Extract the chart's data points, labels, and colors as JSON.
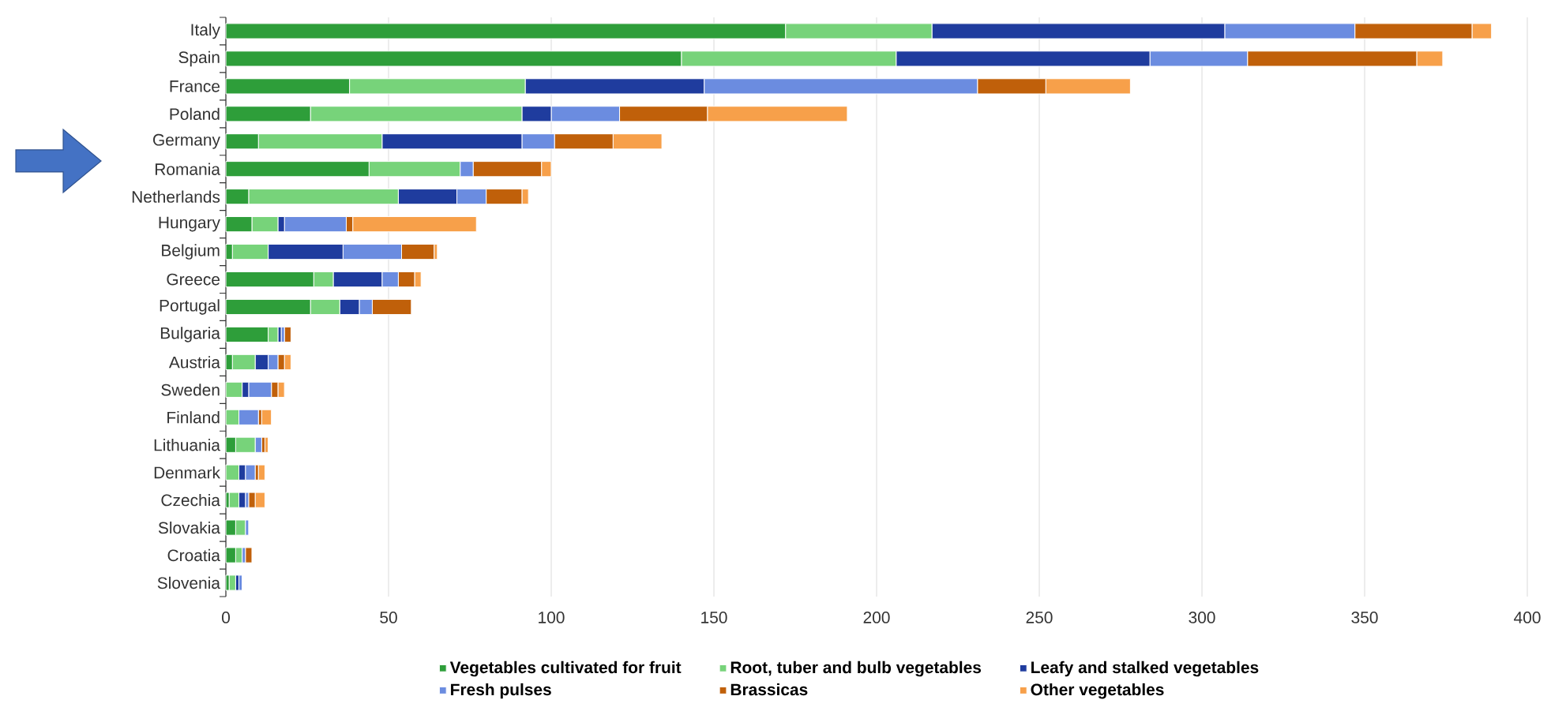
{
  "chart_data": {
    "type": "bar",
    "orientation": "horizontal",
    "stacked": true,
    "categories": [
      "Italy",
      "Spain",
      "France",
      "Poland",
      "Germany",
      "Romania",
      "Netherlands",
      "Hungary",
      "Belgium",
      "Greece",
      "Portugal",
      "Bulgaria",
      "Austria",
      "Sweden",
      "Finland",
      "Lithuania",
      "Denmark",
      "Czechia",
      "Slovakia",
      "Croatia",
      "Slovenia"
    ],
    "series": [
      {
        "name": "Vegetables cultivated for fruit",
        "color": "#2e9e3a",
        "values": [
          172,
          140,
          38,
          26,
          10,
          44,
          7,
          8,
          2,
          27,
          26,
          13,
          2,
          0,
          0,
          3,
          0,
          1,
          3,
          3,
          1
        ]
      },
      {
        "name": "Root, tuber and bulb vegetables",
        "color": "#77d37a",
        "values": [
          45,
          66,
          54,
          65,
          38,
          28,
          46,
          8,
          11,
          6,
          9,
          3,
          7,
          5,
          4,
          6,
          4,
          3,
          3,
          2,
          2
        ]
      },
      {
        "name": "Leafy and stalked vegetables",
        "color": "#1f3c9e",
        "values": [
          90,
          78,
          55,
          9,
          43,
          0,
          18,
          2,
          23,
          15,
          6,
          1,
          4,
          2,
          0,
          0,
          2,
          2,
          0,
          0,
          1
        ]
      },
      {
        "name": "Fresh pulses",
        "color": "#6b8ce0",
        "values": [
          40,
          30,
          84,
          21,
          10,
          4,
          9,
          19,
          18,
          5,
          4,
          1,
          3,
          7,
          6,
          2,
          3,
          1,
          1,
          1,
          1
        ]
      },
      {
        "name": "Brassicas",
        "color": "#c0600a",
        "values": [
          36,
          52,
          21,
          27,
          18,
          21,
          11,
          2,
          10,
          5,
          12,
          2,
          2,
          2,
          1,
          1,
          1,
          2,
          0,
          2,
          0
        ]
      },
      {
        "name": "Other vegetables",
        "color": "#f7a04a",
        "values": [
          6,
          8,
          26,
          43,
          15,
          3,
          2,
          38,
          1,
          2,
          0,
          0,
          2,
          2,
          3,
          1,
          2,
          3,
          0,
          0,
          0
        ]
      }
    ],
    "xlim": [
      0,
      400
    ],
    "xticks": [
      0,
      50,
      100,
      150,
      200,
      250,
      300,
      350,
      400
    ],
    "grid": "x",
    "legend": "bottom"
  }
}
